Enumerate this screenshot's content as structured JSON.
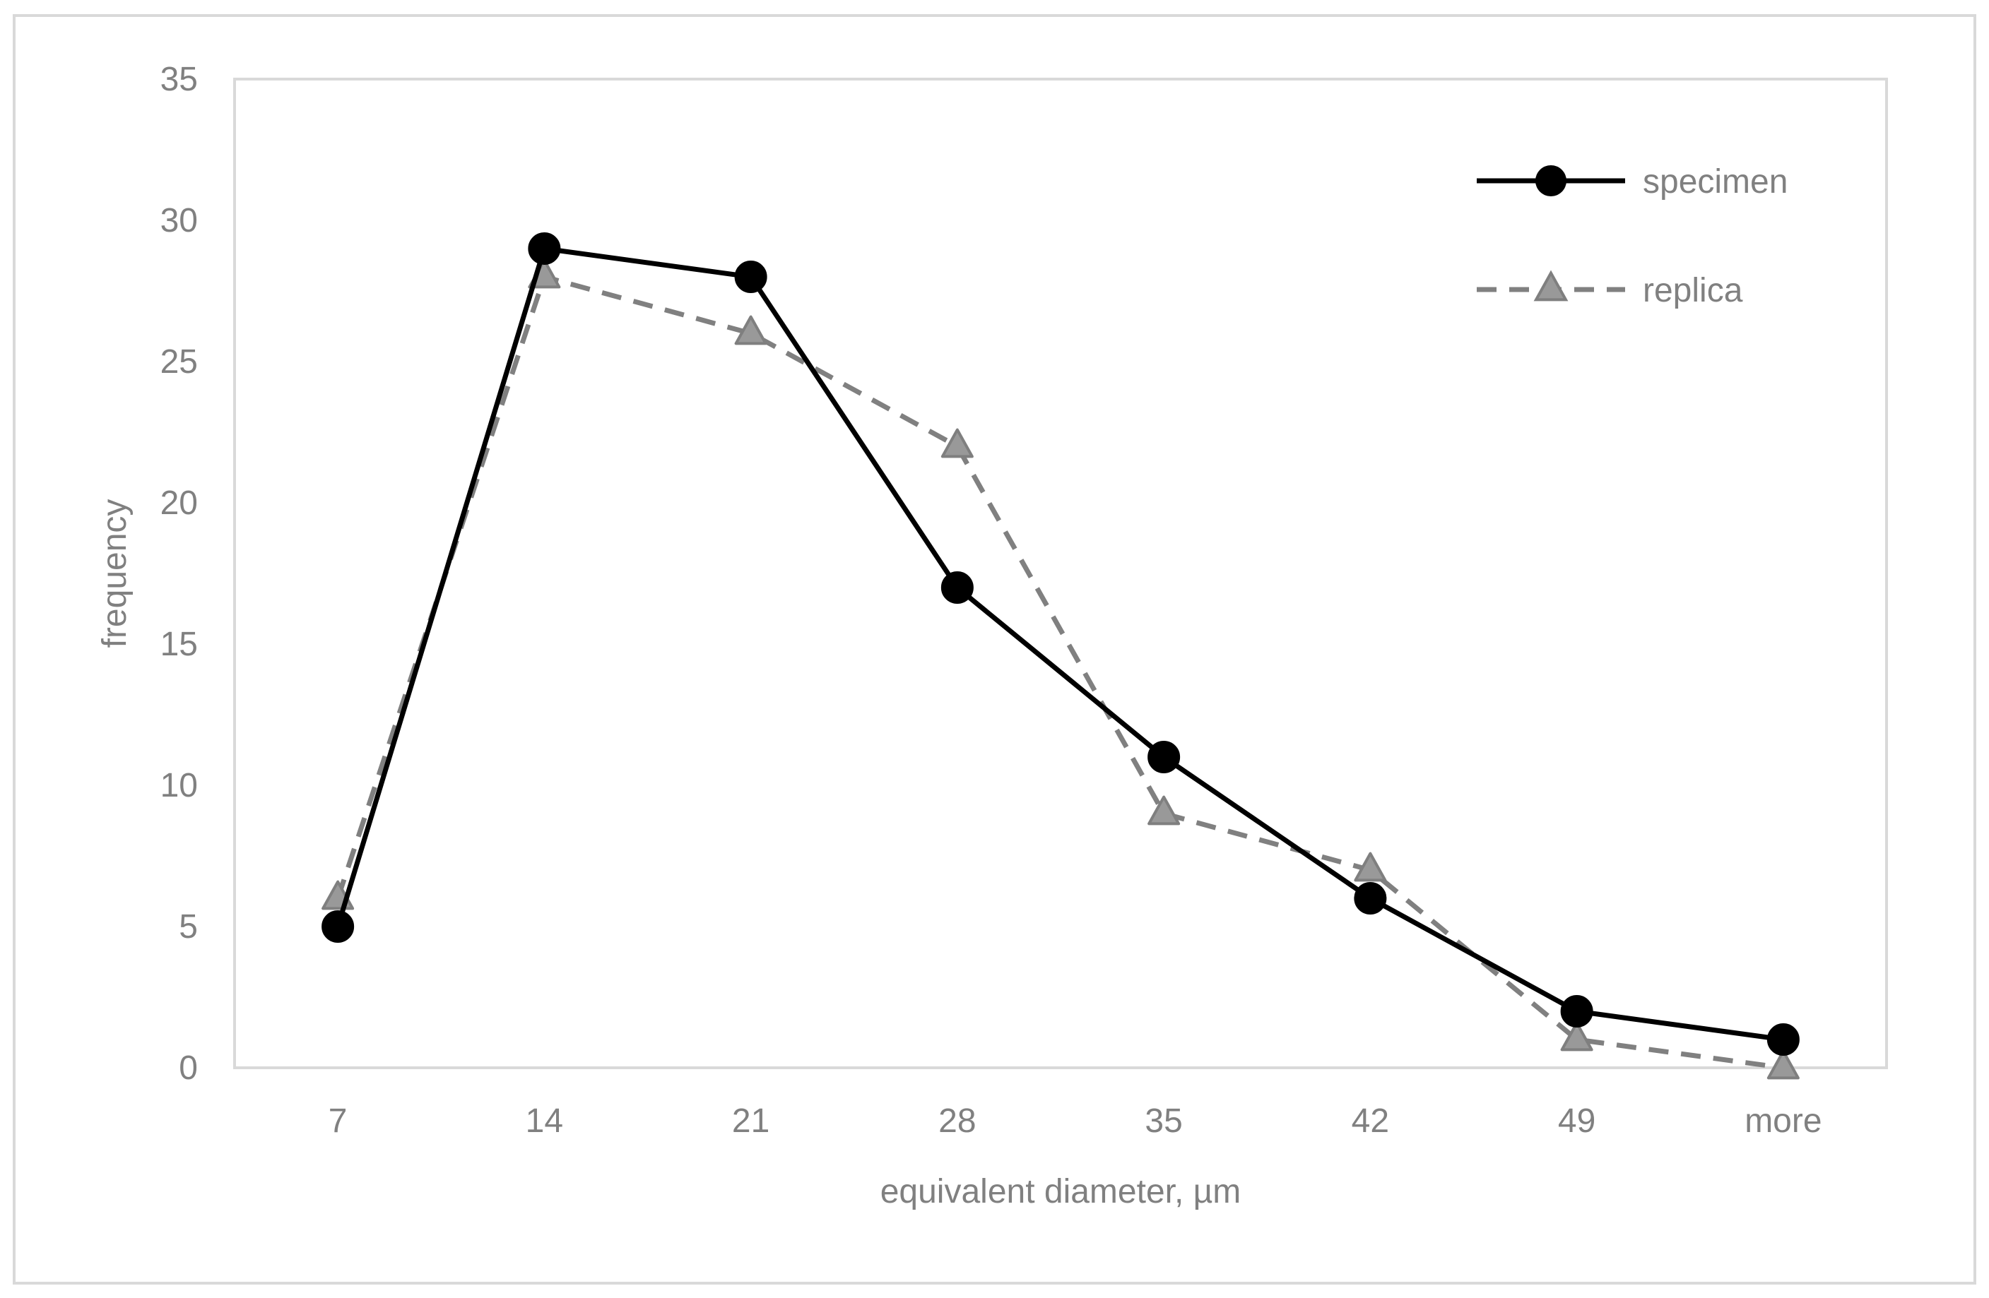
{
  "chart_data": {
    "type": "line",
    "categories": [
      "7",
      "14",
      "21",
      "28",
      "35",
      "42",
      "49",
      "more"
    ],
    "series": [
      {
        "name": "specimen",
        "values": [
          5,
          29,
          28,
          17,
          11,
          6,
          2,
          1
        ],
        "color": "#000000",
        "marker": "circle",
        "line_style": "solid"
      },
      {
        "name": "replica",
        "values": [
          6,
          28,
          26,
          22,
          9,
          7,
          1,
          0
        ],
        "color": "#808080",
        "marker": "triangle",
        "line_style": "dashed"
      }
    ],
    "xlabel": "equivalent diameter, µm",
    "ylabel": "frequency",
    "ylim": [
      0,
      35
    ],
    "yticks": [
      "0",
      "5",
      "10",
      "15",
      "20",
      "25",
      "30",
      "35"
    ],
    "grid": false,
    "legend_position": "top-right"
  }
}
